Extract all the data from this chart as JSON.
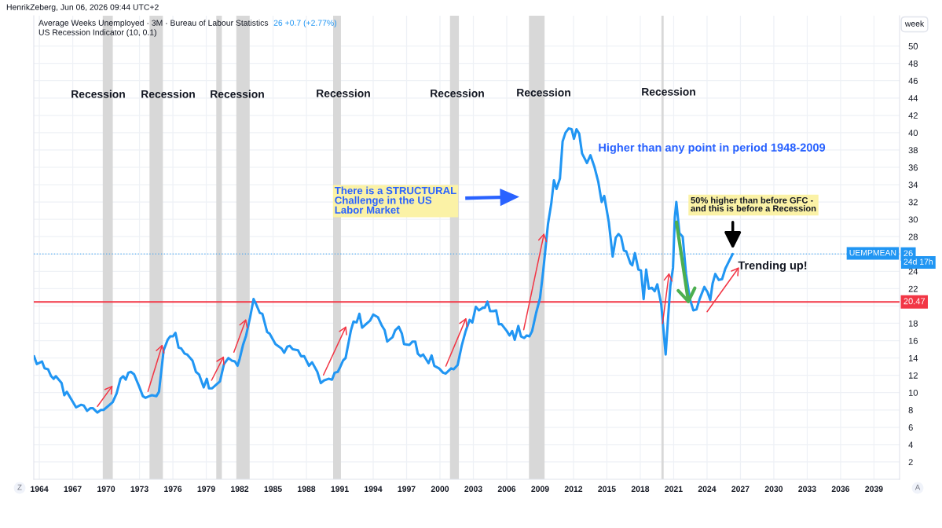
{
  "chart_data": {
    "type": "line",
    "title": "Average Weeks Unemployed · 3M · Bureau of Labour Statistics",
    "subtitle": "US Recession Indicator (10, 0.1)",
    "x": [
      1963.53,
      1963.77,
      1964.24,
      1964.47,
      1964.78,
      1965.06,
      1965.29,
      1965.48,
      1966.0,
      1966.24,
      1966.47,
      1967.3,
      1967.76,
      1968.0,
      1968.29,
      1968.59,
      1968.82,
      1969.22,
      1969.53,
      1969.77,
      1970.59,
      1970.94,
      1971.29,
      1971.53,
      1971.76,
      1972.0,
      1972.23,
      1972.52,
      1972.94,
      1973.3,
      1973.53,
      1973.88,
      1974.12,
      1974.52,
      1974.75,
      1975.17,
      1975.53,
      1975.76,
      1976.0,
      1976.23,
      1976.51,
      1976.75,
      1977.06,
      1977.29,
      1977.76,
      1978.07,
      1978.35,
      1978.77,
      1979.05,
      1979.24,
      1979.53,
      1980.23,
      1980.59,
      1980.99,
      1981.29,
      1981.57,
      1981.81,
      1982.0,
      1982.3,
      1982.58,
      1982.94,
      1983.25,
      1983.48,
      1983.81,
      1984.04,
      1984.47,
      1984.7,
      1985.22,
      1985.76,
      1986.0,
      1986.28,
      1986.51,
      1986.77,
      1987.24,
      1987.52,
      1987.8,
      1988.23,
      1988.51,
      1988.98,
      1989.29,
      1989.57,
      1989.99,
      1990.3,
      1990.54,
      1990.82,
      1991.05,
      1991.29,
      1991.52,
      1992.0,
      1992.23,
      1992.51,
      1992.76,
      1993.0,
      1993.71,
      1994.0,
      1994.43,
      1994.79,
      1995.03,
      1995.26,
      1995.74,
      1995.98,
      1996.3,
      1996.58,
      1996.77,
      1997.25,
      1997.54,
      1997.78,
      1998.01,
      1998.25,
      1998.49,
      1998.97,
      1999.25,
      1999.49,
      1999.92,
      2000.28,
      2000.52,
      2001.0,
      2001.23,
      2001.59,
      2001.95,
      2002.31,
      2002.67,
      2002.91,
      2003.22,
      2003.5,
      2003.86,
      2004.03,
      2004.27,
      2004.51,
      2004.82,
      2005.05,
      2005.29,
      2005.53,
      2006.01,
      2006.25,
      2006.49,
      2006.72,
      2007.04,
      2007.28,
      2007.57,
      2007.8,
      2008.04,
      2008.28,
      2008.64,
      2008.99,
      2009.28,
      2009.71,
      2010.0,
      2010.24,
      2010.47,
      2010.78,
      2011.02,
      2011.28,
      2011.57,
      2011.83,
      2012.04,
      2012.27,
      2012.51,
      2012.77,
      2013.21,
      2013.52,
      2013.87,
      2014.23,
      2014.53,
      2014.76,
      2015.17,
      2015.52,
      2015.8,
      2016.04,
      2016.27,
      2016.53,
      2016.74,
      2017.12,
      2017.28,
      2017.52,
      2017.83,
      2018.06,
      2018.3,
      2018.53,
      2018.77,
      2019.05,
      2019.29,
      2019.53,
      2019.88,
      2020.28,
      2020.52,
      2020.7,
      2020.94,
      2021.1,
      2021.24,
      2021.52,
      2021.81,
      2022.11,
      2022.46,
      2022.77,
      2023.05,
      2023.33,
      2023.76,
      2024.04,
      2024.29,
      2024.5,
      2024.74,
      2025.05,
      2025.35,
      2025.64,
      2025.87,
      2026.3
    ],
    "series": [
      {
        "color": "#2196f3",
        "values": [
          14.2,
          13.3,
          13.6,
          12.8,
          12.7,
          11.9,
          11.6,
          11.9,
          11.1,
          9.7,
          10.1,
          8.3,
          8.6,
          8.5,
          7.9,
          8.2,
          8.2,
          7.7,
          8.0,
          8.0,
          8.9,
          9.9,
          11.6,
          11.9,
          11.5,
          12.3,
          12.4,
          12.1,
          10.8,
          9.6,
          9.4,
          9.6,
          9.7,
          9.6,
          10.1,
          14.9,
          16.1,
          16.5,
          16.5,
          16.9,
          15.2,
          15.1,
          14.5,
          14.4,
          13.7,
          12.4,
          12.1,
          10.6,
          11.6,
          10.5,
          10.5,
          11.3,
          13.3,
          14.0,
          13.7,
          13.6,
          13.1,
          13.9,
          15.5,
          16.6,
          18.7,
          20.8,
          20.2,
          19.2,
          19.1,
          17.0,
          16.8,
          15.6,
          15.1,
          14.6,
          15.3,
          15.4,
          15.0,
          14.9,
          14.2,
          14.2,
          13.1,
          13.5,
          12.4,
          11.1,
          11.4,
          11.6,
          11.5,
          12.3,
          12.4,
          13.0,
          13.7,
          14.0,
          17.2,
          18.2,
          18.1,
          19.1,
          17.5,
          18.3,
          19.0,
          18.7,
          17.7,
          17.2,
          15.9,
          16.4,
          17.2,
          17.6,
          16.8,
          15.6,
          15.5,
          15.9,
          15.9,
          14.5,
          14.2,
          14.4,
          13.4,
          14.3,
          13.1,
          12.8,
          12.3,
          12.2,
          12.8,
          12.7,
          13.2,
          15.4,
          17.1,
          18.4,
          18.1,
          19.9,
          19.5,
          19.8,
          19.8,
          20.5,
          19.4,
          19.4,
          19.5,
          17.9,
          17.9,
          17.1,
          16.6,
          17.1,
          16.1,
          17.7,
          16.5,
          16.3,
          16.6,
          16.5,
          17.1,
          19.2,
          20.9,
          24.1,
          29.5,
          31.8,
          34.5,
          33.5,
          34.7,
          39.0,
          40.0,
          40.5,
          40.4,
          39.3,
          40.4,
          39.9,
          37.6,
          36.5,
          37.4,
          36.1,
          34.3,
          32.0,
          32.7,
          29.7,
          25.7,
          27.9,
          28.3,
          28.0,
          26.4,
          26.3,
          24.9,
          24.7,
          26.1,
          24.2,
          24.1,
          20.8,
          24.2,
          22.0,
          22.1,
          21.7,
          22.5,
          20.2,
          14.4,
          19.0,
          22.3,
          24.4,
          30.2,
          32.0,
          28.4,
          28.0,
          23.7,
          20.8,
          19.5,
          19.6,
          20.8,
          22.2,
          21.6,
          20.7,
          22.6,
          23.7,
          23.0,
          23.1,
          24.3,
          24.9,
          26.0
        ]
      }
    ],
    "xlim": [
      1963.5,
      2041.3
    ],
    "ylim": [
      0,
      53.5
    ],
    "xticks": [
      1964,
      1967,
      1970,
      1973,
      1976,
      1979,
      1982,
      1985,
      1988,
      1991,
      1994,
      1997,
      2000,
      2003,
      2006,
      2009,
      2012,
      2015,
      2018,
      2021,
      2024,
      2027,
      2030,
      2033,
      2036,
      2039
    ],
    "yticks": [
      2,
      4,
      6,
      8,
      10,
      12,
      14,
      16,
      18,
      {
        "value": 20,
        "label": null
      },
      22,
      24,
      {
        "value": 26,
        "label": null
      },
      28,
      30,
      32,
      34,
      36,
      38,
      40,
      42,
      44,
      46,
      48,
      50
    ],
    "grid": true,
    "bands": [
      {
        "axis": "x",
        "from": 1969.7,
        "to": 1970.6,
        "color": "#d8d8d8"
      },
      {
        "axis": "x",
        "from": 1973.9,
        "to": 1975.1,
        "color": "#d8d8d8"
      },
      {
        "axis": "x",
        "from": 1979.9,
        "to": 1980.4,
        "color": "#d8d8d8"
      },
      {
        "axis": "x",
        "from": 1981.7,
        "to": 1982.9,
        "color": "#d8d8d8"
      },
      {
        "axis": "x",
        "from": 1990.4,
        "to": 1991.1,
        "color": "#d8d8d8"
      },
      {
        "axis": "x",
        "from": 2000.9,
        "to": 2001.7,
        "color": "#d8d8d8"
      },
      {
        "axis": "x",
        "from": 2008.0,
        "to": 2009.4,
        "color": "#d8d8d8"
      },
      {
        "axis": "x",
        "from": 2019.9,
        "to": 2020.1,
        "color": "#d8d8d8"
      }
    ],
    "ref_lines": [
      {
        "axis": "y",
        "value": 20.47,
        "label": "20.47",
        "color": "#f23645"
      },
      {
        "axis": "y",
        "value": 26,
        "label": "26",
        "color": "#2196f3",
        "line_style": "dotted"
      }
    ],
    "annotations": [
      "Recession",
      "Recession",
      "Recession",
      "Recession",
      "Recession",
      "Recession",
      "Recession",
      "There is a STRUCTURAL\nChallenge in the US\nLabor Market",
      "Higher than any point in period 1948-2009",
      "50% higher than before GFC -\nand this is before a Recession",
      "Trending up!",
      "HenrikZeberg, Jun 06, 2026 09:44 UTC+2",
      "26 +0.7 (+2.77%)",
      "UEMPMEAN",
      "24d 17h",
      "week",
      "Z",
      "A"
    ]
  }
}
